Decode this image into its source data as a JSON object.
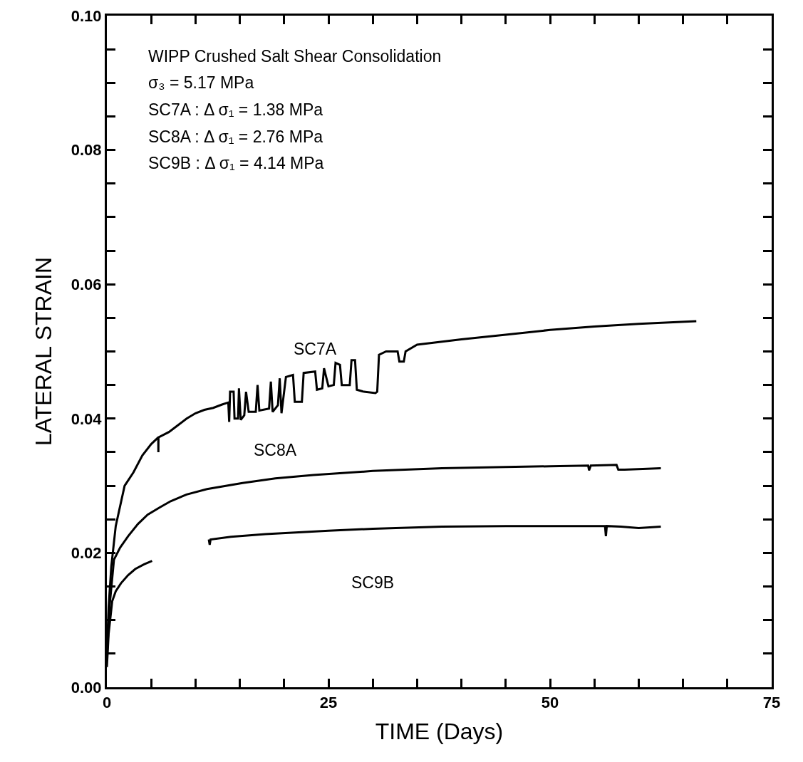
{
  "chart_data": {
    "type": "line",
    "xlabel": "TIME (Days)",
    "ylabel": "LATERAL STRAIN",
    "xlim": [
      0,
      75
    ],
    "ylim": [
      0,
      0.1
    ],
    "xticks": [
      0,
      {
        "value": 5,
        "label": null
      },
      {
        "value": 10,
        "label": null
      },
      {
        "value": 15,
        "label": null
      },
      {
        "value": 20,
        "label": null
      },
      25,
      {
        "value": 30,
        "label": null
      },
      {
        "value": 35,
        "label": null
      },
      {
        "value": 40,
        "label": null
      },
      {
        "value": 45,
        "label": null
      },
      50,
      {
        "value": 55,
        "label": null
      },
      {
        "value": 60,
        "label": null
      },
      {
        "value": 65,
        "label": null
      },
      {
        "value": 70,
        "label": null
      },
      75
    ],
    "yticks": [
      {
        "value": 0,
        "label": "0.00"
      },
      {
        "value": 0.005,
        "label": null
      },
      {
        "value": 0.01,
        "label": null
      },
      {
        "value": 0.015,
        "label": null
      },
      {
        "value": 0.02,
        "label": "0.02"
      },
      {
        "value": 0.025,
        "label": null
      },
      {
        "value": 0.03,
        "label": null
      },
      {
        "value": 0.035,
        "label": null
      },
      {
        "value": 0.04,
        "label": "0.04"
      },
      {
        "value": 0.045,
        "label": null
      },
      {
        "value": 0.05,
        "label": null
      },
      {
        "value": 0.055,
        "label": null
      },
      {
        "value": 0.06,
        "label": "0.06"
      },
      {
        "value": 0.065,
        "label": null
      },
      {
        "value": 0.07,
        "label": null
      },
      {
        "value": 0.075,
        "label": null
      },
      {
        "value": 0.08,
        "label": "0.08"
      },
      {
        "value": 0.085,
        "label": null
      },
      {
        "value": 0.09,
        "label": null
      },
      {
        "value": 0.095,
        "label": null
      },
      {
        "value": 0.1,
        "label": "0.10"
      }
    ],
    "grid": false,
    "legend": false,
    "marker": "none",
    "line_style": "solid",
    "series": [
      {
        "name": "SC7A",
        "color": "#000000",
        "x": [
          0,
          0.2,
          0.5,
          1,
          1.5,
          2,
          3,
          4,
          5,
          5.8,
          5.81,
          5.82,
          7,
          8,
          9,
          10,
          11,
          12,
          13,
          13.7,
          13.8,
          13.9,
          14.3,
          14.4,
          14.8,
          14.9,
          15.1,
          15.5,
          15.7,
          16.0,
          16.8,
          17.0,
          17.2,
          18.3,
          18.5,
          18.7,
          19.3,
          19.5,
          19.7,
          20.2,
          21.0,
          21.2,
          22.0,
          22.2,
          23.5,
          23.7,
          24.3,
          24.5,
          25.0,
          25.6,
          25.8,
          26.3,
          26.5,
          27.4,
          27.6,
          28.0,
          28.2,
          29.0,
          30.3,
          30.5,
          30.7,
          31.5,
          32.8,
          33.0,
          33.5,
          33.7,
          35,
          40,
          45,
          50,
          55,
          60,
          66.5
        ],
        "values": [
          0.005,
          0.012,
          0.018,
          0.024,
          0.027,
          0.03,
          0.032,
          0.0345,
          0.0362,
          0.0372,
          0.035,
          0.0372,
          0.038,
          0.039,
          0.04,
          0.0408,
          0.0413,
          0.0416,
          0.0421,
          0.0424,
          0.0395,
          0.044,
          0.044,
          0.04,
          0.04,
          0.0445,
          0.0398,
          0.0405,
          0.044,
          0.041,
          0.041,
          0.045,
          0.0412,
          0.0415,
          0.0455,
          0.041,
          0.042,
          0.046,
          0.0408,
          0.0462,
          0.0465,
          0.0425,
          0.0425,
          0.0468,
          0.047,
          0.0443,
          0.0445,
          0.0475,
          0.0448,
          0.045,
          0.0483,
          0.048,
          0.045,
          0.045,
          0.0487,
          0.0487,
          0.0443,
          0.044,
          0.0438,
          0.044,
          0.0495,
          0.05,
          0.05,
          0.0485,
          0.0485,
          0.05,
          0.051,
          0.0518,
          0.0525,
          0.0532,
          0.0537,
          0.0541,
          0.0545
        ]
      },
      {
        "name": "SC8A",
        "color": "#000000",
        "x": [
          0,
          0.3,
          0.8,
          1.5,
          2.4,
          3.5,
          4.6,
          6,
          7.2,
          9,
          11.3,
          15.3,
          19,
          23.3,
          30,
          37.8,
          45,
          50,
          54.3,
          54.4,
          54.6,
          57.5,
          57.7,
          58.4,
          62.5
        ],
        "values": [
          0.004,
          0.012,
          0.019,
          0.0208,
          0.0225,
          0.0243,
          0.0257,
          0.0268,
          0.0277,
          0.0287,
          0.0295,
          0.0304,
          0.0311,
          0.0316,
          0.0322,
          0.0326,
          0.0328,
          0.0329,
          0.033,
          0.0323,
          0.033,
          0.0331,
          0.0324,
          0.0324,
          0.0326
        ]
      },
      {
        "name": "SC9B",
        "color": "#000000",
        "x": [
          0,
          0.2,
          0.6,
          1.0,
          1.6,
          2.4,
          3.2,
          4.2,
          5.1,
          8,
          11.5,
          11.6,
          11.7,
          14,
          17.9,
          25,
          30,
          37.8,
          45,
          50,
          56.2,
          56.3,
          56.4,
          58,
          60,
          62.5
        ],
        "values": [
          0.003,
          0.008,
          0.0128,
          0.0143,
          0.0155,
          0.0167,
          0.0176,
          0.0183,
          0.0188,
          null,
          0.022,
          0.0212,
          0.022,
          0.0224,
          0.0228,
          0.0233,
          0.0236,
          0.0239,
          0.024,
          0.024,
          0.024,
          0.0225,
          0.024,
          0.0239,
          0.0237,
          0.0239
        ]
      }
    ],
    "annotations": [
      "WIPP Crushed Salt Shear Consolidation",
      "σ₃ = 5.17 MPa",
      "SC7A : Δ σ₁ = 1.38 MPa",
      "SC8A : Δ σ₁ = 2.76 MPa",
      "SC9B : Δ σ₁ = 4.14 MPa"
    ]
  }
}
